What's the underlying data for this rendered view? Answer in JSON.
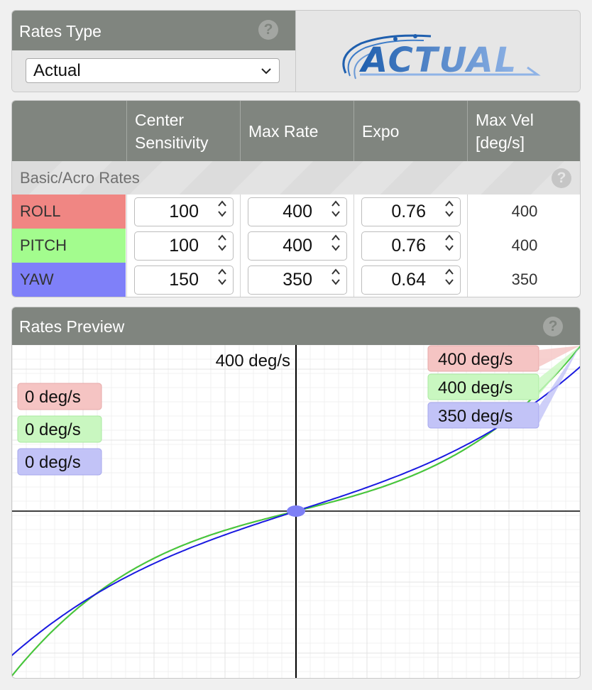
{
  "rates_type": {
    "title": "Rates Type",
    "help": "?",
    "selected": "Actual",
    "logo_text": "ACTUAL"
  },
  "rates_table": {
    "headers": [
      "",
      "Center Sensitivity",
      "Max Rate",
      "Expo",
      "Max Vel [deg/s]"
    ],
    "section_title": "Basic/Acro Rates",
    "help": "?",
    "rows": [
      {
        "axis": "ROLL",
        "color": "#f08683",
        "center": "100",
        "max_rate": "400",
        "expo": "0.76",
        "max_vel": "400"
      },
      {
        "axis": "PITCH",
        "color": "#a3fc8e",
        "center": "100",
        "max_rate": "400",
        "expo": "0.76",
        "max_vel": "400"
      },
      {
        "axis": "YAW",
        "color": "#7f80f9",
        "center": "150",
        "max_rate": "350",
        "expo": "0.64",
        "max_vel": "350"
      }
    ]
  },
  "preview": {
    "title": "Rates Preview",
    "help": "?",
    "center_label": "400 deg/s",
    "current_labels": [
      "0 deg/s",
      "0 deg/s",
      "0 deg/s"
    ],
    "max_labels": [
      "400 deg/s",
      "400 deg/s",
      "350 deg/s"
    ]
  },
  "chart_data": {
    "type": "line",
    "x_range": [
      -1,
      1
    ],
    "y_range": [
      -400,
      400
    ],
    "grid": true,
    "series": [
      {
        "name": "ROLL",
        "color": "#d62020",
        "center": 100,
        "max_rate": 400,
        "expo": 0.76
      },
      {
        "name": "PITCH",
        "color": "#3ecf3e",
        "center": 100,
        "max_rate": 400,
        "expo": 0.76
      },
      {
        "name": "YAW",
        "color": "#1a1ae0",
        "center": 150,
        "max_rate": 350,
        "expo": 0.64
      }
    ]
  }
}
